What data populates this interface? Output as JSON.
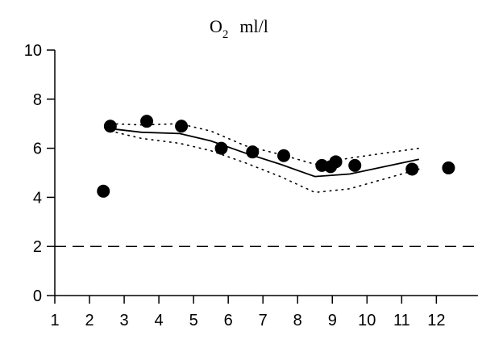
{
  "chart_data": {
    "type": "scatter",
    "title": {
      "main": "O",
      "subscript": "2",
      "unit": "ml/l"
    },
    "xlim": [
      1,
      13.2
    ],
    "ylim": [
      0,
      10
    ],
    "x_ticks": [
      1,
      2,
      3,
      4,
      5,
      6,
      7,
      8,
      9,
      10,
      11,
      12
    ],
    "y_ticks": [
      0,
      2,
      4,
      6,
      8,
      10
    ],
    "grid": false,
    "series": [
      {
        "kind": "points",
        "x": [
          2.4,
          2.6,
          3.65,
          4.65,
          5.8,
          6.7,
          7.6,
          8.7,
          8.95,
          9.1,
          9.65,
          11.3,
          12.35
        ],
        "y": [
          4.25,
          6.9,
          7.1,
          6.9,
          6.0,
          5.85,
          5.7,
          5.3,
          5.25,
          5.45,
          5.3,
          5.15,
          5.2
        ]
      },
      {
        "kind": "solid-line",
        "x": [
          2.6,
          3.5,
          4.6,
          5.5,
          6.5,
          7.5,
          8.5,
          9.5,
          10.5,
          11.5
        ],
        "y": [
          6.8,
          6.65,
          6.6,
          6.3,
          5.8,
          5.35,
          4.85,
          4.95,
          5.25,
          5.55
        ]
      },
      {
        "kind": "dotted-upper",
        "x": [
          2.6,
          3.5,
          4.6,
          5.5,
          6.5,
          7.5,
          8.5,
          9.5,
          10.5,
          11.5
        ],
        "y": [
          7.0,
          6.95,
          7.0,
          6.7,
          6.1,
          5.75,
          5.35,
          5.6,
          5.8,
          6.0
        ]
      },
      {
        "kind": "dotted-lower",
        "x": [
          2.6,
          3.5,
          4.6,
          5.5,
          6.5,
          7.5,
          8.5,
          9.5,
          10.5,
          11.5
        ],
        "y": [
          6.7,
          6.4,
          6.2,
          5.9,
          5.4,
          4.85,
          4.2,
          4.35,
          4.75,
          5.15
        ]
      }
    ],
    "reference_line": {
      "y": 2,
      "style": "dashed"
    }
  }
}
